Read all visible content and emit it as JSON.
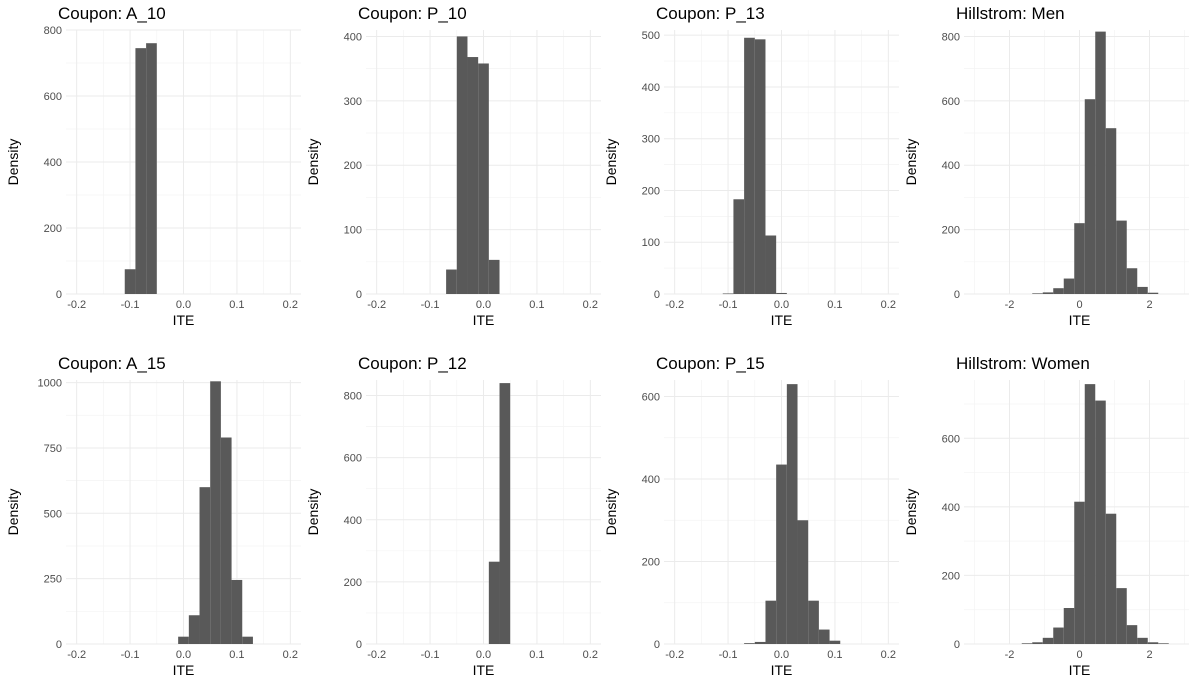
{
  "chart_data": [
    {
      "type": "bar",
      "title": "Coupon: A_10",
      "xlabel": "ITE",
      "ylabel": "Density",
      "xlim": [
        -0.22,
        0.22
      ],
      "ylim": [
        0,
        800
      ],
      "xticks": [
        -0.2,
        -0.1,
        0.0,
        0.1,
        0.2
      ],
      "xtick_labels": [
        "-0.2",
        "-0.1",
        "0.0",
        "0.1",
        "0.2"
      ],
      "yticks": [
        0,
        200,
        400,
        600,
        800
      ],
      "ytick_labels": [
        "0",
        "200",
        "400",
        "600",
        "800"
      ],
      "bin_width": 0.02,
      "bin_centers": [
        -0.1,
        -0.08,
        -0.06
      ],
      "values": [
        75,
        745,
        760
      ],
      "grid": true
    },
    {
      "type": "bar",
      "title": "Coupon: P_10",
      "xlabel": "ITE",
      "ylabel": "Density",
      "xlim": [
        -0.22,
        0.22
      ],
      "ylim": [
        0,
        410
      ],
      "xticks": [
        -0.2,
        -0.1,
        0.0,
        0.1,
        0.2
      ],
      "xtick_labels": [
        "-0.2",
        "-0.1",
        "0.0",
        "0.1",
        "0.2"
      ],
      "yticks": [
        0,
        100,
        200,
        300,
        400
      ],
      "ytick_labels": [
        "0",
        "100",
        "200",
        "300",
        "400"
      ],
      "bin_width": 0.02,
      "bin_centers": [
        -0.06,
        -0.04,
        -0.02,
        0.0,
        0.02
      ],
      "values": [
        38,
        400,
        368,
        358,
        53
      ],
      "grid": true
    },
    {
      "type": "bar",
      "title": "Coupon: P_13",
      "xlabel": "ITE",
      "ylabel": "Density",
      "xlim": [
        -0.22,
        0.22
      ],
      "ylim": [
        0,
        510
      ],
      "xticks": [
        -0.2,
        -0.1,
        0.0,
        0.1,
        0.2
      ],
      "xtick_labels": [
        "-0.2",
        "-0.1",
        "0.0",
        "0.1",
        "0.2"
      ],
      "yticks": [
        0,
        100,
        200,
        300,
        400,
        500
      ],
      "ytick_labels": [
        "0",
        "100",
        "200",
        "300",
        "400",
        "500"
      ],
      "bin_width": 0.02,
      "bin_centers": [
        -0.1,
        -0.08,
        -0.06,
        -0.04,
        -0.02,
        0.0
      ],
      "values": [
        1,
        183,
        495,
        492,
        113,
        2
      ],
      "grid": true
    },
    {
      "type": "bar",
      "title": "Hillstrom: Men",
      "xlabel": "ITE",
      "ylabel": "Density",
      "xlim": [
        -3.3,
        3.3
      ],
      "ylim": [
        0,
        820
      ],
      "xticks": [
        -2,
        0,
        2
      ],
      "xtick_labels": [
        "-2",
        "0",
        "2"
      ],
      "yticks": [
        0,
        200,
        400,
        600,
        800
      ],
      "ytick_labels": [
        "0",
        "200",
        "400",
        "600",
        "800"
      ],
      "bin_width": 0.3,
      "bin_centers": [
        -1.2,
        -0.9,
        -0.6,
        -0.3,
        0.0,
        0.3,
        0.6,
        0.9,
        1.2,
        1.5,
        1.8,
        2.1
      ],
      "values": [
        2,
        5,
        18,
        48,
        220,
        605,
        815,
        515,
        228,
        80,
        22,
        4
      ],
      "grid": true
    },
    {
      "type": "bar",
      "title": "Coupon: A_15",
      "xlabel": "ITE",
      "ylabel": "Density",
      "xlim": [
        -0.22,
        0.22
      ],
      "ylim": [
        0,
        1010
      ],
      "xticks": [
        -0.2,
        -0.1,
        0.0,
        0.1,
        0.2
      ],
      "xtick_labels": [
        "-0.2",
        "-0.1",
        "0.0",
        "0.1",
        "0.2"
      ],
      "yticks": [
        0,
        250,
        500,
        750,
        1000
      ],
      "ytick_labels": [
        "0",
        "250",
        "500",
        "750",
        "1000"
      ],
      "bin_width": 0.02,
      "bin_centers": [
        0.0,
        0.02,
        0.04,
        0.06,
        0.08,
        0.1,
        0.12
      ],
      "values": [
        28,
        110,
        600,
        1005,
        790,
        245,
        28
      ],
      "grid": true
    },
    {
      "type": "bar",
      "title": "Coupon: P_12",
      "xlabel": "ITE",
      "ylabel": "Density",
      "xlim": [
        -0.22,
        0.22
      ],
      "ylim": [
        0,
        850
      ],
      "xticks": [
        -0.2,
        -0.1,
        0.0,
        0.1,
        0.2
      ],
      "xtick_labels": [
        "-0.2",
        "-0.1",
        "0.0",
        "0.1",
        "0.2"
      ],
      "yticks": [
        0,
        200,
        400,
        600,
        800
      ],
      "ytick_labels": [
        "0",
        "200",
        "400",
        "600",
        "800"
      ],
      "bin_width": 0.02,
      "bin_centers": [
        0.02,
        0.04
      ],
      "values": [
        265,
        840
      ],
      "grid": true
    },
    {
      "type": "bar",
      "title": "Coupon: P_15",
      "xlabel": "ITE",
      "ylabel": "Density",
      "xlim": [
        -0.22,
        0.22
      ],
      "ylim": [
        0,
        640
      ],
      "xticks": [
        -0.2,
        -0.1,
        0.0,
        0.1,
        0.2
      ],
      "xtick_labels": [
        "-0.2",
        "-0.1",
        "0.0",
        "0.1",
        "0.2"
      ],
      "yticks": [
        0,
        200,
        400,
        600
      ],
      "ytick_labels": [
        "0",
        "200",
        "400",
        "600"
      ],
      "bin_width": 0.02,
      "bin_centers": [
        -0.06,
        -0.04,
        -0.02,
        0.0,
        0.02,
        0.04,
        0.06,
        0.08,
        0.1
      ],
      "values": [
        2,
        5,
        105,
        435,
        630,
        300,
        105,
        35,
        8
      ],
      "grid": true
    },
    {
      "type": "bar",
      "title": "Hillstrom: Women",
      "xlabel": "ITE",
      "ylabel": "Density",
      "xlim": [
        -3.3,
        3.3
      ],
      "ylim": [
        0,
        770
      ],
      "xticks": [
        -2,
        0,
        2
      ],
      "xtick_labels": [
        "-2",
        "0",
        "2"
      ],
      "yticks": [
        0,
        200,
        400,
        600
      ],
      "ytick_labels": [
        "0",
        "200",
        "400",
        "600"
      ],
      "bin_width": 0.3,
      "bin_centers": [
        -1.5,
        -1.2,
        -0.9,
        -0.6,
        -0.3,
        0.0,
        0.3,
        0.6,
        0.9,
        1.2,
        1.5,
        1.8,
        2.1,
        2.4
      ],
      "values": [
        2,
        5,
        18,
        48,
        105,
        415,
        758,
        710,
        380,
        163,
        55,
        18,
        5,
        2
      ],
      "grid": true
    }
  ]
}
